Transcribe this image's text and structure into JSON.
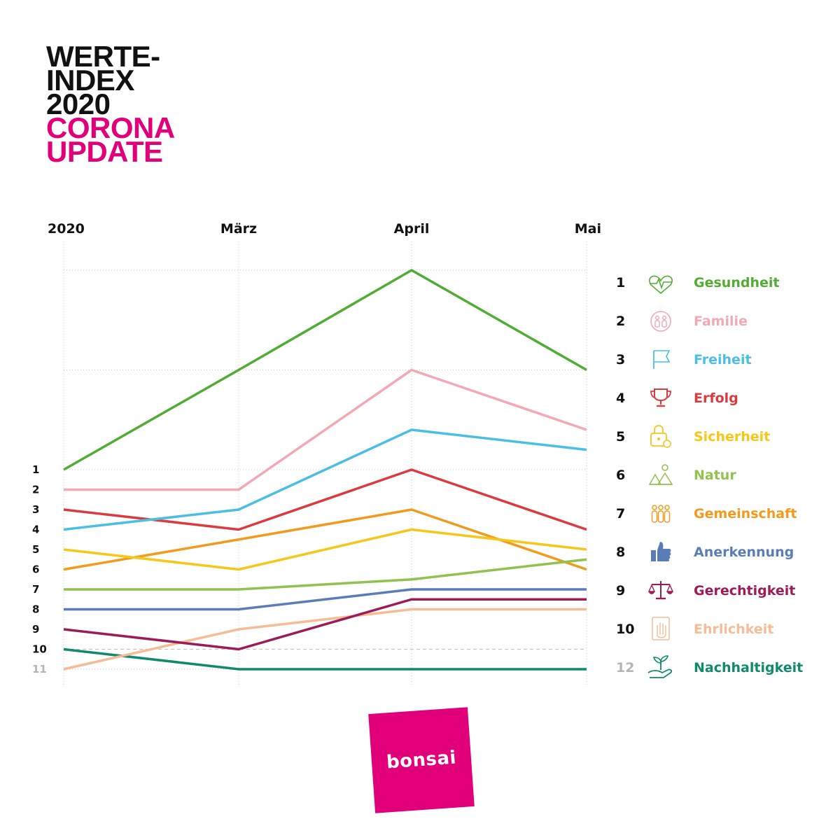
{
  "title": {
    "line1": "WERTE-",
    "line2": "INDEX",
    "line3": "2020",
    "line4": "CORONA",
    "line5": "UPDATE"
  },
  "colors": {
    "accent": "#e2007a",
    "text": "#111111",
    "muted": "#b5b5b5"
  },
  "logo_text": "bonsai",
  "chart_data": {
    "type": "line",
    "categories": [
      "2020",
      "März",
      "April",
      "Mai"
    ],
    "y_axis_labels": [
      "1",
      "2",
      "3",
      "4",
      "5",
      "6",
      "7",
      "8",
      "9",
      "10",
      "11"
    ],
    "y_scale_note": "rank, 1 at top",
    "ylim": [
      -9,
      11
    ],
    "grid": "dotted",
    "legend_position": "right",
    "series": [
      {
        "rank": "1",
        "name": "Gesundheit",
        "color": "#52ac34",
        "icon": "heart-pulse-icon",
        "values": [
          1,
          -4,
          -9,
          -4
        ]
      },
      {
        "rank": "2",
        "name": "Familie",
        "color": "#f2a9b4",
        "icon": "family-icon",
        "values": [
          2,
          2,
          -4,
          -1
        ]
      },
      {
        "rank": "3",
        "name": "Freiheit",
        "color": "#4bbee3",
        "icon": "flag-icon",
        "values": [
          4,
          3,
          -1,
          0
        ]
      },
      {
        "rank": "4",
        "name": "Erfolg",
        "color": "#db3b3f",
        "icon": "trophy-icon",
        "values": [
          3,
          4,
          1,
          4
        ]
      },
      {
        "rank": "5",
        "name": "Sicherheit",
        "color": "#f5c718",
        "icon": "lock-icon",
        "values": [
          5,
          6,
          4,
          5
        ]
      },
      {
        "rank": "6",
        "name": "Natur",
        "color": "#91c24d",
        "icon": "nature-icon",
        "values": [
          7,
          7,
          6.5,
          5.5
        ]
      },
      {
        "rank": "7",
        "name": "Gemeinschaft",
        "color": "#f39a1d",
        "icon": "community-icon",
        "values": [
          6,
          4.5,
          3,
          6
        ]
      },
      {
        "rank": "8",
        "name": "Anerkennung",
        "color": "#5a7db8",
        "icon": "thumbs-up-icon",
        "values": [
          8,
          8,
          7,
          7
        ]
      },
      {
        "rank": "9",
        "name": "Gerechtigkeit",
        "color": "#9c1b58",
        "icon": "scales-icon",
        "values": [
          9,
          10,
          7.5,
          7.5
        ]
      },
      {
        "rank": "10",
        "name": "Ehrlichkeit",
        "color": "#f5bc95",
        "icon": "hand-icon",
        "values": [
          11,
          9,
          8,
          8
        ]
      },
      {
        "rank": "12",
        "name": "Nachhaltigkeit",
        "color": "#0f8a6a",
        "icon": "plant-hand-icon",
        "values": [
          10,
          11,
          11,
          11
        ]
      }
    ]
  }
}
